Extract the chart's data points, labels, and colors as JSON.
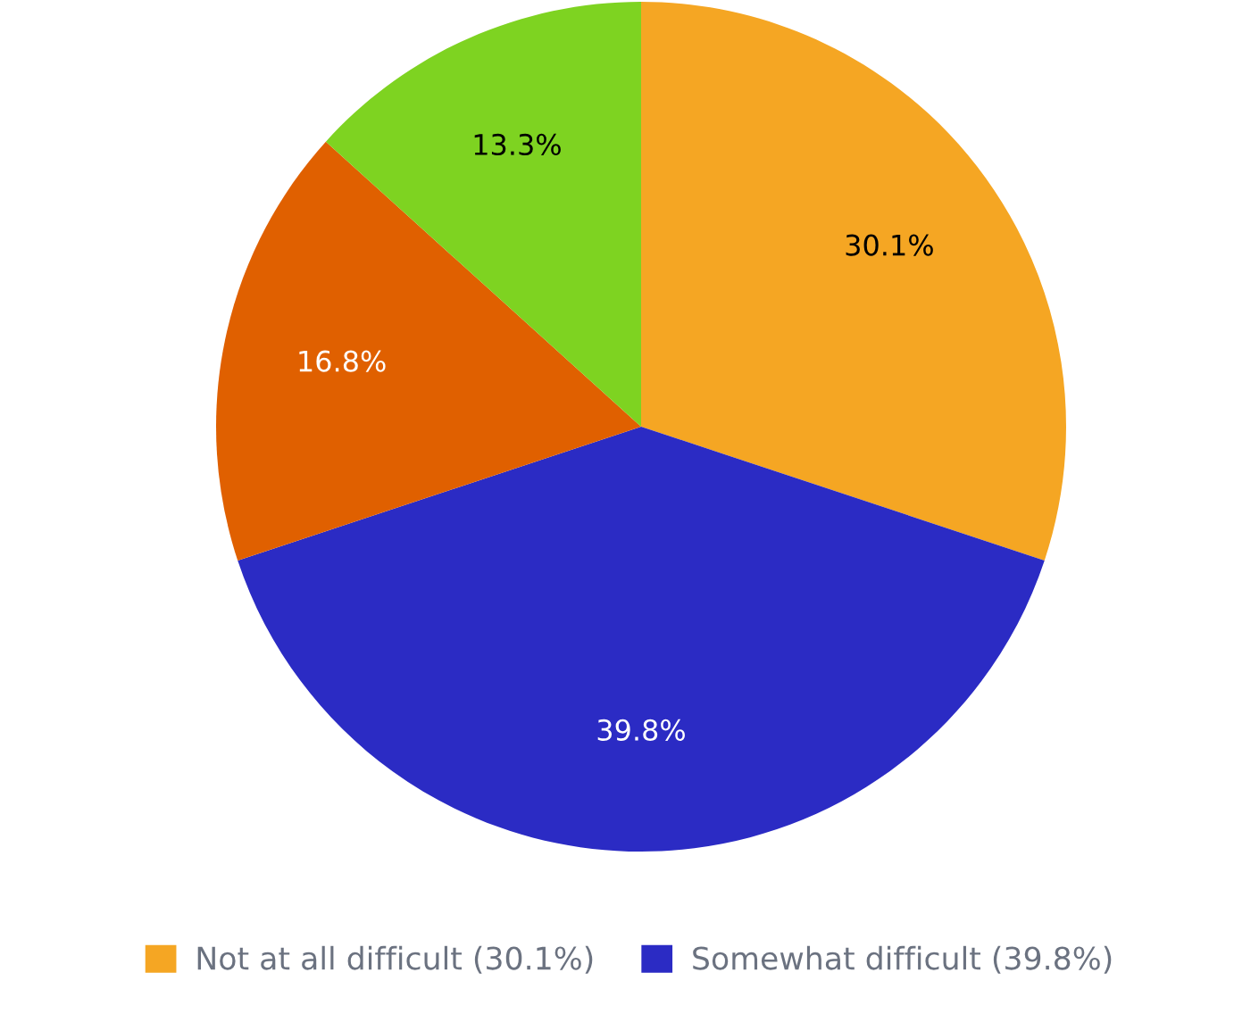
{
  "chart_data": {
    "type": "pie",
    "categories": [
      "Not at all difficult (30.1%)",
      "Somewhat difficult (39.8%)",
      null,
      null
    ],
    "values": [
      30.1,
      39.8,
      16.8,
      13.3
    ],
    "colors": [
      "#f5a623",
      "#2b2bc4",
      "#e06000",
      "#7ed321"
    ],
    "value_labels": [
      "30.1%",
      "39.8%",
      "16.8%",
      "13.3%"
    ],
    "legend": "bottom"
  }
}
